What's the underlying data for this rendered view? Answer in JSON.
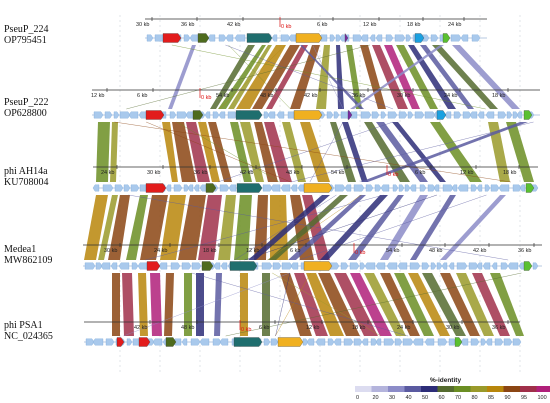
{
  "genomes": [
    {
      "name": "PseuP_224",
      "accession": "OP795451",
      "ticks": [
        "30 kb",
        "36 kb",
        "42 kb",
        "0 kb",
        "6 kb",
        "12 kb",
        "18 kb",
        "24 kb"
      ]
    },
    {
      "name": "PseuP_222",
      "accession": "OP628800",
      "ticks": [
        "12 kb",
        "6 kb",
        "0 kb",
        "54 kb",
        "48 kb",
        "42 kb",
        "36 kb",
        "30 kb",
        "24 kb",
        "18 kb"
      ]
    },
    {
      "name": "phi AH14a",
      "accession": "KU708004",
      "ticks": [
        "24 kb",
        "30 kb",
        "36 kb",
        "42 kb",
        "48 kb",
        "54 kb",
        "0 kb",
        "6 kb",
        "12 kb",
        "18 kb"
      ]
    },
    {
      "name": "Medea1",
      "accession": "MW862109",
      "ticks": [
        "30 kb",
        "24 kb",
        "18 kb",
        "12 kb",
        "6 kb",
        "0 kb",
        "54 kb",
        "48 kb",
        "42 kb",
        "36 kb"
      ]
    },
    {
      "name": "phi PSA1",
      "accession": "NC_024365",
      "ticks": [
        "42 kb",
        "48 kb",
        "0 kb",
        "6 kb",
        "12 kb",
        "18 kb",
        "24 kb",
        "30 kb",
        "36 kb"
      ]
    }
  ],
  "legend": {
    "title": "%-identity",
    "labels": [
      "0",
      "20",
      "30",
      "40",
      "50",
      "60",
      "70",
      "80",
      "85",
      "90",
      "95",
      "100"
    ],
    "colors": [
      "#dcdcf0",
      "#b4b4dc",
      "#8c8cc8",
      "#5a5aa0",
      "#2d2d78",
      "#556b2f",
      "#6b8e23",
      "#9a9a2a",
      "#b8860b",
      "#8b4513",
      "#a0304a",
      "#b0207a",
      "#e060c0"
    ]
  }
}
